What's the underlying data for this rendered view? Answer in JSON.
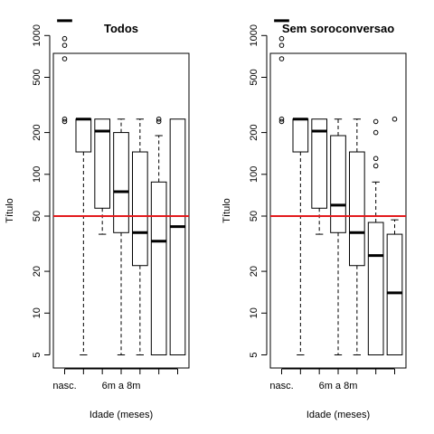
{
  "chart_data": [
    {
      "type": "box",
      "title": "Todos",
      "xlabel": "Idade (meses)",
      "ylabel": "Título",
      "y_scale": "log",
      "ylim": [
        4,
        1600
      ],
      "y_ticks": [
        5,
        10,
        20,
        50,
        100,
        200,
        500,
        1000
      ],
      "x_tick_labels": [
        "nasc.",
        "",
        "",
        "6m a 8m",
        "",
        "",
        ""
      ],
      "reference_line": {
        "y": 50,
        "color": "#e31a1c"
      },
      "boxes": [
        {
          "min": 1280,
          "q1": 1280,
          "median": 1280,
          "q3": 1280,
          "max": 1280,
          "outliers": [
            950,
            850,
            680,
            250,
            240
          ]
        },
        {
          "min": 5,
          "q1": 145,
          "median": 250,
          "q3": 250,
          "max": 250,
          "outliers": []
        },
        {
          "min": 37,
          "q1": 57,
          "median": 205,
          "q3": 250,
          "max": 250,
          "outliers": []
        },
        {
          "min": 5,
          "q1": 38,
          "median": 75,
          "q3": 200,
          "max": 250,
          "outliers": []
        },
        {
          "min": 5,
          "q1": 22,
          "median": 38,
          "q3": 145,
          "max": 250,
          "outliers": []
        },
        {
          "min": 5,
          "q1": 5,
          "median": 33,
          "q3": 88,
          "max": 190,
          "outliers": [
            250,
            240
          ]
        },
        {
          "min": 5,
          "q1": 5,
          "median": 42,
          "q3": 250,
          "max": 250,
          "outliers": []
        }
      ]
    },
    {
      "type": "box",
      "title": "Sem soroconversao",
      "xlabel": "Idade (meses)",
      "ylabel": "Título",
      "y_scale": "log",
      "ylim": [
        4,
        1600
      ],
      "y_ticks": [
        5,
        10,
        20,
        50,
        100,
        200,
        500,
        1000
      ],
      "x_tick_labels": [
        "nasc.",
        "",
        "",
        "6m a 8m",
        "",
        "",
        ""
      ],
      "reference_line": {
        "y": 50,
        "color": "#e31a1c"
      },
      "boxes": [
        {
          "min": 1280,
          "q1": 1280,
          "median": 1280,
          "q3": 1280,
          "max": 1280,
          "outliers": [
            950,
            850,
            680,
            250,
            240
          ]
        },
        {
          "min": 5,
          "q1": 145,
          "median": 250,
          "q3": 250,
          "max": 250,
          "outliers": []
        },
        {
          "min": 37,
          "q1": 57,
          "median": 205,
          "q3": 250,
          "max": 250,
          "outliers": []
        },
        {
          "min": 5,
          "q1": 38,
          "median": 60,
          "q3": 190,
          "max": 250,
          "outliers": []
        },
        {
          "min": 5,
          "q1": 22,
          "median": 38,
          "q3": 145,
          "max": 250,
          "outliers": []
        },
        {
          "min": 5,
          "q1": 5,
          "median": 26,
          "q3": 45,
          "max": 88,
          "outliers": [
            240,
            200,
            130,
            115
          ]
        },
        {
          "min": 5,
          "q1": 5,
          "median": 14,
          "q3": 37,
          "max": 47,
          "outliers": [
            250
          ]
        }
      ]
    }
  ]
}
